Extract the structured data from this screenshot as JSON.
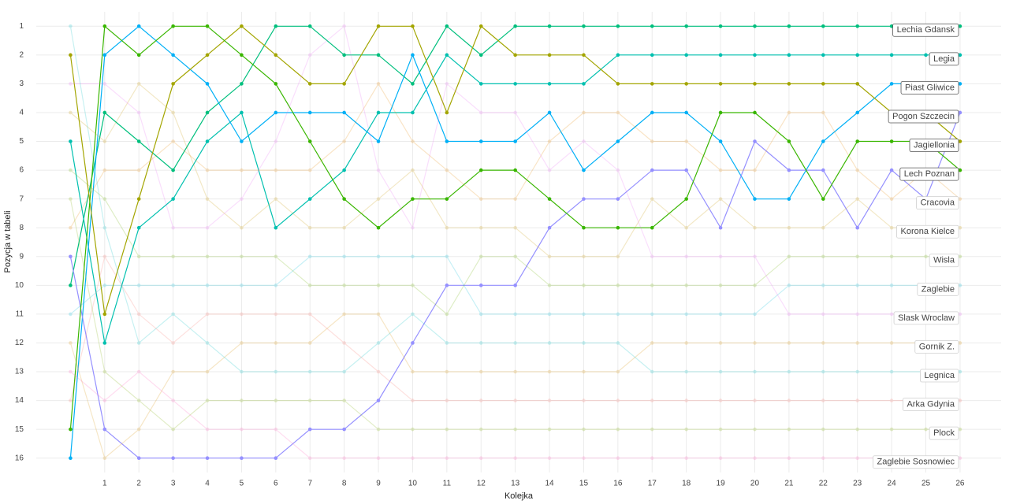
{
  "chart_data": {
    "type": "line",
    "x_label": "Kolejka",
    "y_label": "Pozycja w tabeli",
    "x": [
      0,
      1,
      2,
      3,
      4,
      5,
      6,
      7,
      8,
      9,
      10,
      11,
      12,
      13,
      14,
      15,
      16,
      17,
      18,
      19,
      20,
      21,
      22,
      23,
      24,
      25,
      26
    ],
    "xlim": [
      -1,
      27.2
    ],
    "xticks": [
      1,
      2,
      3,
      4,
      5,
      6,
      7,
      8,
      9,
      10,
      11,
      12,
      13,
      14,
      15,
      16,
      17,
      18,
      19,
      20,
      21,
      22,
      23,
      24,
      25,
      26
    ],
    "ylim": [
      16.5,
      0.5
    ],
    "yticks": [
      1,
      2,
      3,
      4,
      5,
      6,
      7,
      8,
      9,
      10,
      11,
      12,
      13,
      14,
      15,
      16
    ],
    "grid": true,
    "series": [
      {
        "name": "Lechia Gdansk",
        "color": "#00BF7D",
        "opacity": 1,
        "values": [
          10,
          4,
          5,
          6,
          4,
          3,
          1,
          1,
          2,
          2,
          3,
          1,
          2,
          1,
          1,
          1,
          1,
          1,
          1,
          1,
          1,
          1,
          1,
          1,
          1,
          1,
          1
        ]
      },
      {
        "name": "Legia",
        "color": "#00C0AF",
        "opacity": 1,
        "values": [
          5,
          12,
          8,
          7,
          5,
          4,
          8,
          7,
          6,
          4,
          4,
          2,
          3,
          3,
          3,
          3,
          2,
          2,
          2,
          2,
          2,
          2,
          2,
          2,
          2,
          2,
          2
        ]
      },
      {
        "name": "Piast Gliwice",
        "color": "#00B0F6",
        "opacity": 1,
        "values": [
          16,
          2,
          1,
          2,
          3,
          5,
          4,
          4,
          4,
          5,
          2,
          5,
          5,
          5,
          4,
          6,
          5,
          4,
          4,
          5,
          7,
          7,
          5,
          4,
          3,
          3,
          3
        ]
      },
      {
        "name": "Pogon Szczecin",
        "color": "#9590FF",
        "opacity": 1,
        "values": [
          9,
          15,
          16,
          16,
          16,
          16,
          16,
          15,
          15,
          14,
          12,
          10,
          10,
          10,
          8,
          7,
          7,
          6,
          6,
          8,
          5,
          6,
          6,
          8,
          6,
          7,
          4
        ]
      },
      {
        "name": "Jagiellonia",
        "color": "#A3A500",
        "opacity": 1,
        "values": [
          2,
          11,
          7,
          3,
          2,
          1,
          2,
          3,
          3,
          1,
          1,
          4,
          1,
          2,
          2,
          2,
          3,
          3,
          3,
          3,
          3,
          3,
          3,
          3,
          4,
          4,
          5
        ]
      },
      {
        "name": "Lech Poznan",
        "color": "#39B600",
        "opacity": 1,
        "values": [
          15,
          1,
          2,
          1,
          1,
          2,
          3,
          5,
          7,
          8,
          7,
          7,
          6,
          6,
          7,
          8,
          8,
          8,
          7,
          4,
          4,
          5,
          7,
          5,
          5,
          5,
          6
        ]
      },
      {
        "name": "Cracovia",
        "color": "#E58700",
        "opacity": 0.22,
        "values": [
          8,
          6,
          6,
          5,
          6,
          6,
          6,
          6,
          5,
          3,
          5,
          6,
          7,
          7,
          5,
          4,
          4,
          5,
          5,
          6,
          6,
          4,
          4,
          6,
          7,
          6,
          7
        ]
      },
      {
        "name": "Korona Kielce",
        "color": "#C99800",
        "opacity": 0.22,
        "values": [
          4,
          5,
          3,
          4,
          7,
          8,
          7,
          8,
          8,
          7,
          6,
          8,
          8,
          8,
          9,
          9,
          9,
          7,
          8,
          7,
          8,
          8,
          8,
          7,
          8,
          8,
          8
        ]
      },
      {
        "name": "Wisla",
        "color": "#6BB100",
        "opacity": 0.22,
        "values": [
          6,
          7,
          9,
          9,
          9,
          9,
          9,
          10,
          10,
          10,
          10,
          11,
          9,
          9,
          10,
          10,
          10,
          10,
          10,
          10,
          10,
          9,
          9,
          9,
          9,
          9,
          9
        ]
      },
      {
        "name": "Zaglebie",
        "color": "#00BCD8",
        "opacity": 0.22,
        "values": [
          11,
          10,
          10,
          10,
          10,
          10,
          10,
          9,
          9,
          9,
          9,
          9,
          11,
          11,
          11,
          11,
          11,
          11,
          11,
          11,
          11,
          10,
          10,
          10,
          10,
          10,
          10
        ]
      },
      {
        "name": "Slask Wroclaw",
        "color": "#E76BF3",
        "opacity": 0.22,
        "values": [
          3,
          3,
          4,
          8,
          8,
          7,
          5,
          2,
          1,
          6,
          8,
          3,
          4,
          4,
          6,
          5,
          6,
          9,
          9,
          9,
          9,
          11,
          11,
          11,
          11,
          11,
          11
        ]
      },
      {
        "name": "Gornik Z.",
        "color": "#D89000",
        "opacity": 0.22,
        "values": [
          12,
          16,
          15,
          13,
          13,
          12,
          12,
          12,
          11,
          11,
          13,
          13,
          13,
          13,
          13,
          13,
          13,
          12,
          12,
          12,
          12,
          12,
          12,
          12,
          12,
          12,
          12
        ]
      },
      {
        "name": "Legnica",
        "color": "#00BFC4",
        "opacity": 0.22,
        "values": [
          1,
          8,
          12,
          11,
          12,
          13,
          13,
          13,
          13,
          12,
          11,
          12,
          12,
          12,
          12,
          12,
          12,
          13,
          13,
          13,
          13,
          13,
          13,
          13,
          13,
          13,
          13
        ]
      },
      {
        "name": "Arka Gdynia",
        "color": "#F8766D",
        "opacity": 0.22,
        "values": [
          14,
          9,
          11,
          12,
          11,
          11,
          11,
          11,
          12,
          13,
          14,
          14,
          14,
          14,
          14,
          14,
          14,
          14,
          14,
          14,
          14,
          14,
          14,
          14,
          14,
          14,
          14
        ]
      },
      {
        "name": "Plock",
        "color": "#7CAE00",
        "opacity": 0.22,
        "values": [
          7,
          13,
          14,
          15,
          14,
          14,
          14,
          14,
          14,
          15,
          15,
          15,
          15,
          15,
          15,
          15,
          15,
          15,
          15,
          15,
          15,
          15,
          15,
          15,
          15,
          15,
          15
        ]
      },
      {
        "name": "Zaglebie Sosnowiec",
        "color": "#FF62BC",
        "opacity": 0.22,
        "values": [
          13,
          14,
          13,
          14,
          15,
          15,
          15,
          16,
          16,
          16,
          16,
          16,
          16,
          16,
          16,
          16,
          16,
          16,
          16,
          16,
          16,
          16,
          16,
          16,
          16,
          16,
          16
        ]
      }
    ]
  }
}
